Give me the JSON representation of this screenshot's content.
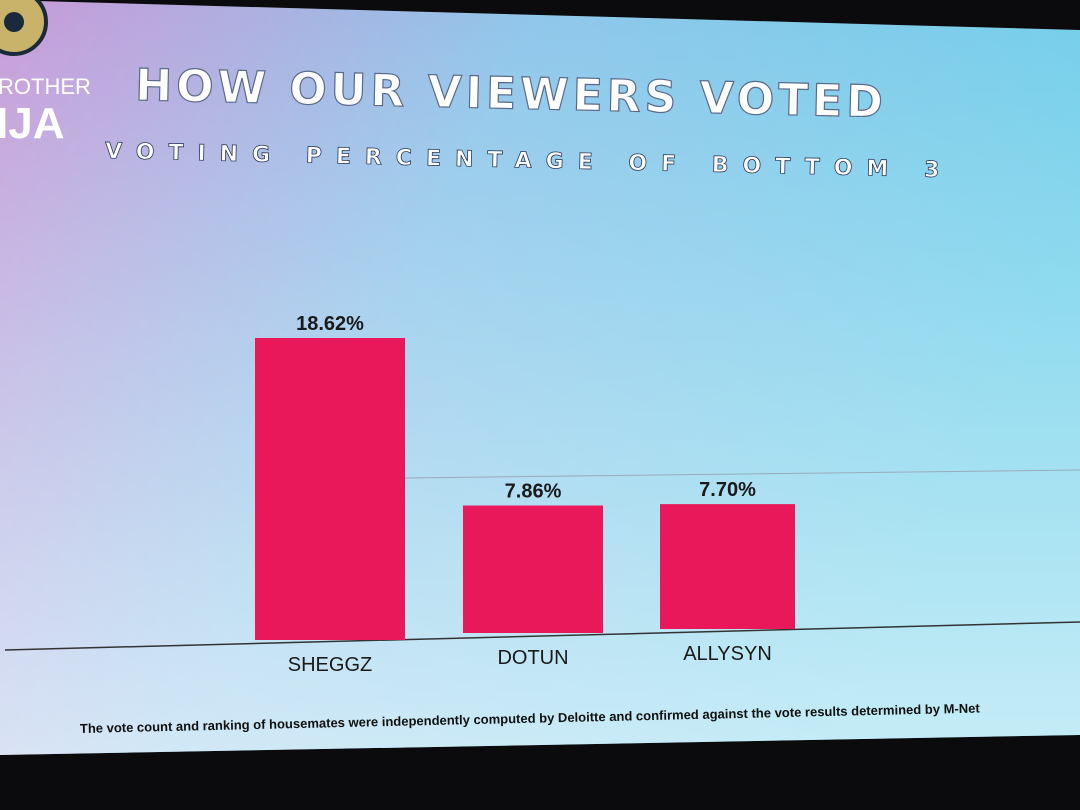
{
  "chart_data": {
    "type": "bar",
    "title": "HOW OUR VIEWERS VOTED",
    "subtitle": "VOTING PERCENTAGE OF BOTTOM 3",
    "logo_text": [
      "ROTHER",
      "IJA"
    ],
    "categories": [
      "SHEGGZ",
      "DOTUN",
      "ALLYSYN"
    ],
    "values": [
      18.62,
      7.86,
      7.7
    ],
    "value_labels": [
      "18.62%",
      "7.86%",
      "7.70%"
    ],
    "color": "#e8185a",
    "note": "The vote count and ranking of housemates were independently computed by Deloitte and confirmed against the vote results determined by M-Net"
  }
}
